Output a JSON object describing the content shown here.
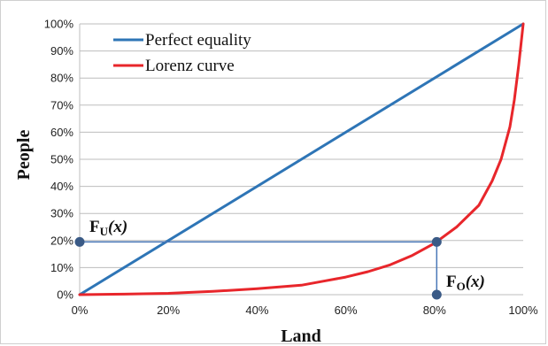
{
  "chart_data": {
    "type": "line",
    "xlabel": "Land",
    "ylabel": "People",
    "xlim": [
      0,
      100
    ],
    "ylim": [
      0,
      100
    ],
    "x_ticks": [
      "0%",
      "20%",
      "40%",
      "60%",
      "80%",
      "100%"
    ],
    "y_ticks": [
      "0%",
      "10%",
      "20%",
      "30%",
      "40%",
      "50%",
      "60%",
      "70%",
      "80%",
      "90%",
      "100%"
    ],
    "grid": true,
    "legend_position": "top-left",
    "series": [
      {
        "name": "Perfect equality",
        "color": "#2e75b6",
        "x": [
          0,
          100
        ],
        "y": [
          0,
          100
        ]
      },
      {
        "name": "Lorenz curve",
        "color": "#e8262b",
        "x": [
          0,
          10,
          20,
          30,
          40,
          50,
          55,
          60,
          65,
          70,
          75,
          80,
          85,
          90,
          93,
          95,
          97,
          98,
          99,
          100
        ],
        "y": [
          0,
          0.2,
          0.5,
          1.2,
          2.2,
          3.5,
          5,
          6.5,
          8.5,
          11,
          14.5,
          19,
          25,
          33,
          42,
          50,
          62,
          72,
          85,
          100
        ]
      }
    ],
    "annotations": {
      "fu": {
        "main": "F",
        "sub": "U",
        "arg": "(x)",
        "point": [
          0,
          19.5
        ]
      },
      "fo": {
        "main": "F",
        "sub": "O",
        "arg": "(x)",
        "point": [
          80.5,
          0
        ]
      },
      "marker": {
        "point": [
          80.5,
          19.5
        ]
      },
      "marker_color": "#3a5a86",
      "line_color": "#4a78b8"
    }
  }
}
